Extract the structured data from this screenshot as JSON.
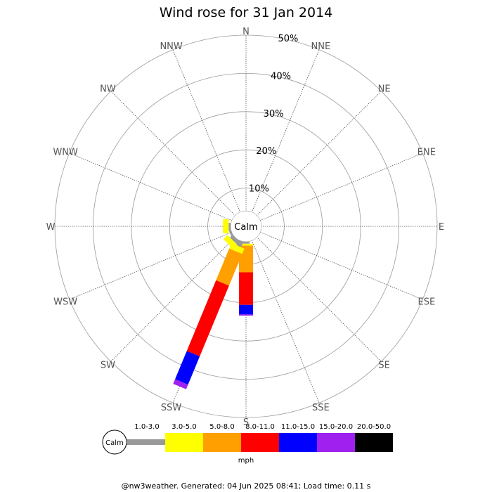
{
  "chart_data": {
    "type": "wind-rose",
    "title": "Wind rose for 31 Jan 2014",
    "directions": [
      "N",
      "NNE",
      "NE",
      "ENE",
      "E",
      "ESE",
      "SE",
      "SSE",
      "S",
      "SSW",
      "SW",
      "WSW",
      "W",
      "WNW",
      "NW",
      "NNW"
    ],
    "radial_ticks": [
      "10%",
      "20%",
      "30%",
      "40%",
      "50%"
    ],
    "radial_max_percent": 50,
    "calm_label": "Calm",
    "unit": "mph",
    "speed_bins": [
      {
        "label": "1.0-3.0",
        "color": "#999999"
      },
      {
        "label": "3.0-5.0",
        "color": "#ffff00"
      },
      {
        "label": "5.0-8.0",
        "color": "#ff9f00"
      },
      {
        "label": "8.0-11.0",
        "color": "#ff0000"
      },
      {
        "label": "11.0-15.0",
        "color": "#0000ff"
      },
      {
        "label": "15.0-20.0",
        "color": "#a020f0"
      },
      {
        "label": "20.0-50.0",
        "color": "#000000"
      }
    ],
    "series": [
      {
        "direction": "S",
        "values": [
          0.5,
          0.5,
          7.0,
          8.5,
          2.5,
          0.3,
          0
        ]
      },
      {
        "direction": "SSW",
        "values": [
          1.5,
          1.5,
          9.0,
          20.0,
          8.0,
          1.3,
          0
        ]
      },
      {
        "direction": "SW",
        "values": [
          1.0,
          1.5,
          0,
          0,
          0,
          0,
          0
        ]
      },
      {
        "direction": "WSW",
        "values": [
          0.5,
          0,
          0,
          0,
          0,
          0,
          0
        ]
      },
      {
        "direction": "W",
        "values": [
          0.5,
          1.5,
          0,
          0,
          0,
          0,
          0
        ]
      }
    ]
  },
  "footer": "@nw3weather. Generated: 04 Jun 2025 08:41; Load time: 0.11 s"
}
